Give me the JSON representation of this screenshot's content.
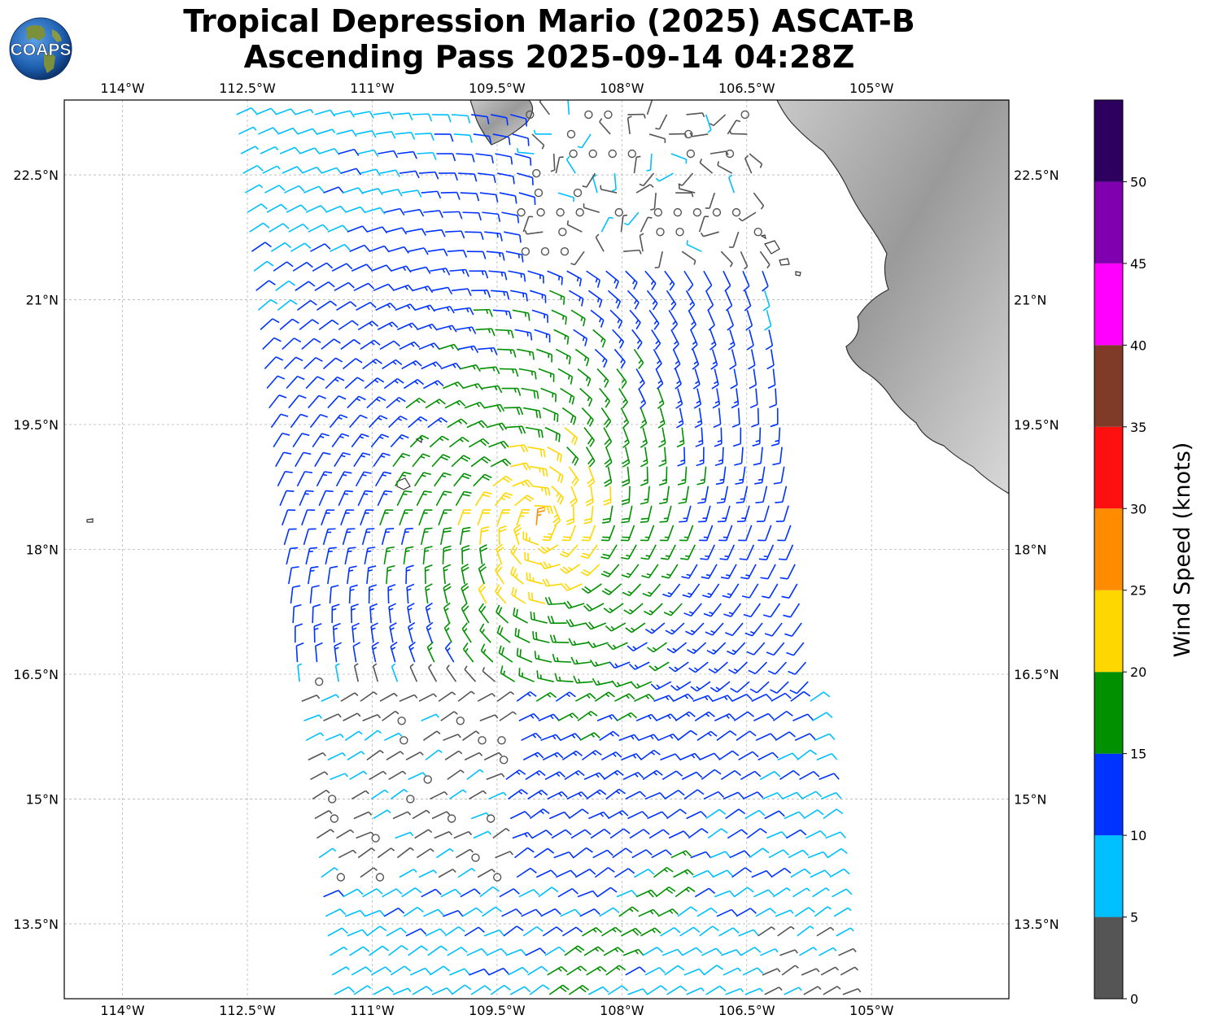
{
  "header": {
    "title_line1": "Tropical Depression Mario (2025) ASCAT-B",
    "title_line2": "Ascending Pass 2025-09-14 04:28Z",
    "logo_text": "COAPS"
  },
  "map": {
    "lon_range": [
      -114.7,
      -103.35
    ],
    "lat_range": [
      12.6,
      23.4
    ],
    "lon_ticks": [
      {
        "value": -114,
        "label": "114°W"
      },
      {
        "value": -112.5,
        "label": "112.5°W"
      },
      {
        "value": -111,
        "label": "111°W"
      },
      {
        "value": -109.5,
        "label": "109.5°W"
      },
      {
        "value": -108,
        "label": "108°W"
      },
      {
        "value": -106.5,
        "label": "106.5°W"
      },
      {
        "value": -105,
        "label": "105°W"
      }
    ],
    "lat_ticks": [
      {
        "value": 22.5,
        "label": "22.5°N"
      },
      {
        "value": 21,
        "label": "21°N"
      },
      {
        "value": 19.5,
        "label": "19.5°N"
      },
      {
        "value": 18,
        "label": "18°N"
      },
      {
        "value": 16.5,
        "label": "16.5°N"
      },
      {
        "value": 15,
        "label": "15°N"
      },
      {
        "value": 13.5,
        "label": "13.5°N"
      }
    ],
    "storm_center": {
      "lon": -109.0,
      "lat": 18.3
    },
    "swath_center_line": [
      [
        -109.55,
        23.4
      ],
      [
        -108.35,
        12.6
      ]
    ],
    "swath_half_width_lon": 3.1,
    "colors": {
      "land": "#b0b0b0",
      "coast": "#333333",
      "grid": "#b5b5b5"
    }
  },
  "colorbar": {
    "label": "Wind Speed (knots)",
    "ticks": [
      "0",
      "5",
      "10",
      "15",
      "20",
      "25",
      "30",
      "35",
      "40",
      "45",
      "50"
    ],
    "bins": [
      {
        "min": 0,
        "max": 5,
        "color": "#555555"
      },
      {
        "min": 5,
        "max": 10,
        "color": "#00bfff"
      },
      {
        "min": 10,
        "max": 15,
        "color": "#0033ff"
      },
      {
        "min": 15,
        "max": 20,
        "color": "#009000"
      },
      {
        "min": 20,
        "max": 25,
        "color": "#ffd700"
      },
      {
        "min": 25,
        "max": 30,
        "color": "#ff8c00"
      },
      {
        "min": 30,
        "max": 35,
        "color": "#ff1010"
      },
      {
        "min": 35,
        "max": 40,
        "color": "#7f3b28"
      },
      {
        "min": 40,
        "max": 45,
        "color": "#ff00ff"
      },
      {
        "min": 45,
        "max": 50,
        "color": "#8000b0"
      },
      {
        "min": 50,
        "max": 55,
        "color": "#2d0060"
      }
    ]
  }
}
